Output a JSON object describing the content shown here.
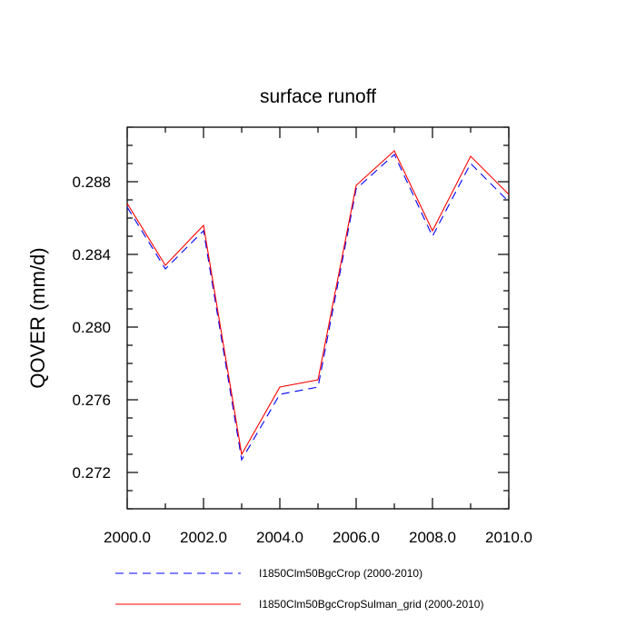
{
  "chart_data": {
    "type": "line",
    "title": "surface runoff",
    "xlabel": "",
    "ylabel": "QOVER  (mm/d)",
    "xlim": [
      2000,
      2010
    ],
    "ylim": [
      0.27,
      0.291
    ],
    "xticks": [
      2000,
      2002,
      2004,
      2006,
      2008,
      2010
    ],
    "xtick_labels": [
      "2000.0",
      "2002.0",
      "2004.0",
      "2006.0",
      "2008.0",
      "2010.0"
    ],
    "yticks": [
      0.272,
      0.276,
      0.28,
      0.284,
      0.288
    ],
    "ytick_labels": [
      "0.272",
      "0.276",
      "0.280",
      "0.284",
      "0.288"
    ],
    "grid": false,
    "legend_position": "bottom",
    "x": [
      2000,
      2001,
      2002,
      2003,
      2004,
      2005,
      2006,
      2007,
      2008,
      2009,
      2010
    ],
    "series": [
      {
        "name": "I1850Clm50BgcCrop (2000-2010)",
        "color": "#0000ff",
        "style": "dashed",
        "values": [
          0.2866,
          0.2832,
          0.2853,
          0.2727,
          0.2763,
          0.2767,
          0.2876,
          0.2895,
          0.285,
          0.289,
          0.2869
        ]
      },
      {
        "name": "I1850Clm50BgcCropSulman_grid (2000-2010)",
        "color": "#ff0000",
        "style": "solid",
        "values": [
          0.2868,
          0.2834,
          0.2856,
          0.273,
          0.2767,
          0.2771,
          0.2878,
          0.2897,
          0.2853,
          0.2894,
          0.2873
        ]
      }
    ]
  }
}
